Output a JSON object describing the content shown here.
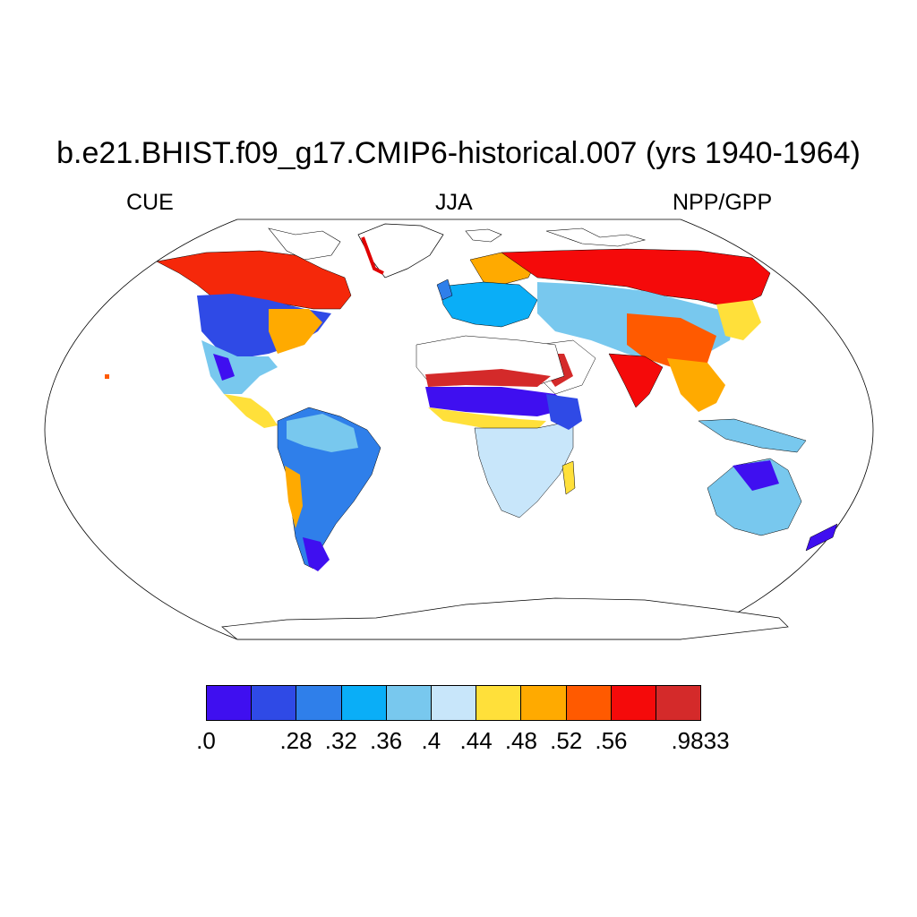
{
  "title": "b.e21.BHIST.f09_g17.CMIP6-historical.007 (yrs 1940-1964)",
  "subtitle_left": "CUE",
  "subtitle_center": "JJA",
  "subtitle_right": "NPP/GPP",
  "colorbar": {
    "colors": [
      "#3f0ff0",
      "#2f4ae6",
      "#2f7fea",
      "#0aaef7",
      "#78c8ee",
      "#c8e6fa",
      "#ffe03a",
      "#ffaa00",
      "#ff5a00",
      "#f50a0a",
      "#d42a2a"
    ],
    "tick_labels": [
      ".0",
      ".28",
      ".32",
      ".36",
      ".4",
      ".44",
      ".48",
      ".52",
      ".56",
      ".9833"
    ]
  }
}
